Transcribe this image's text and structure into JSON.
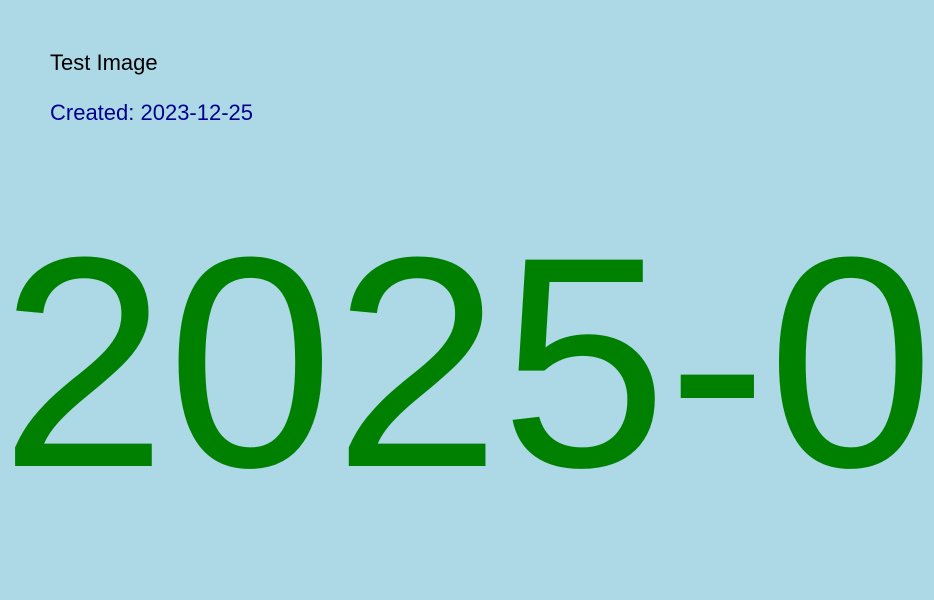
{
  "title": "Test Image",
  "created": "Created: 2023-12-25",
  "big_date": "2025-0",
  "colors": {
    "background": "#ADD8E6",
    "title": "#000000",
    "created": "#00008B",
    "big_date": "#008000"
  }
}
